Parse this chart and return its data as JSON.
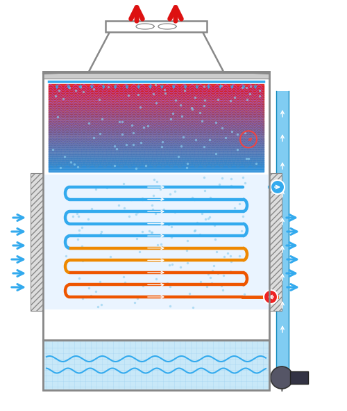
{
  "bg_color": "#ffffff",
  "gc": "#888888",
  "lw": 1.8,
  "red_arrow": "#dd1111",
  "blue_arrow": "#33aaee",
  "coil_blue": "#33aaee",
  "coil_orange": "#ee5500",
  "coil_mid": "#ee8800",
  "spray_dot": "#88ccee",
  "basin_fill": "#c8e8f8",
  "basin_wave": "#33aaee",
  "pipe_blue": "#55bbee",
  "hatch_fill": "#dddddd",
  "elim_fill": "#cccccc",
  "spray_fill": "#e0f0ff",
  "pump_body": "#555566",
  "pump_motor": "#333344"
}
